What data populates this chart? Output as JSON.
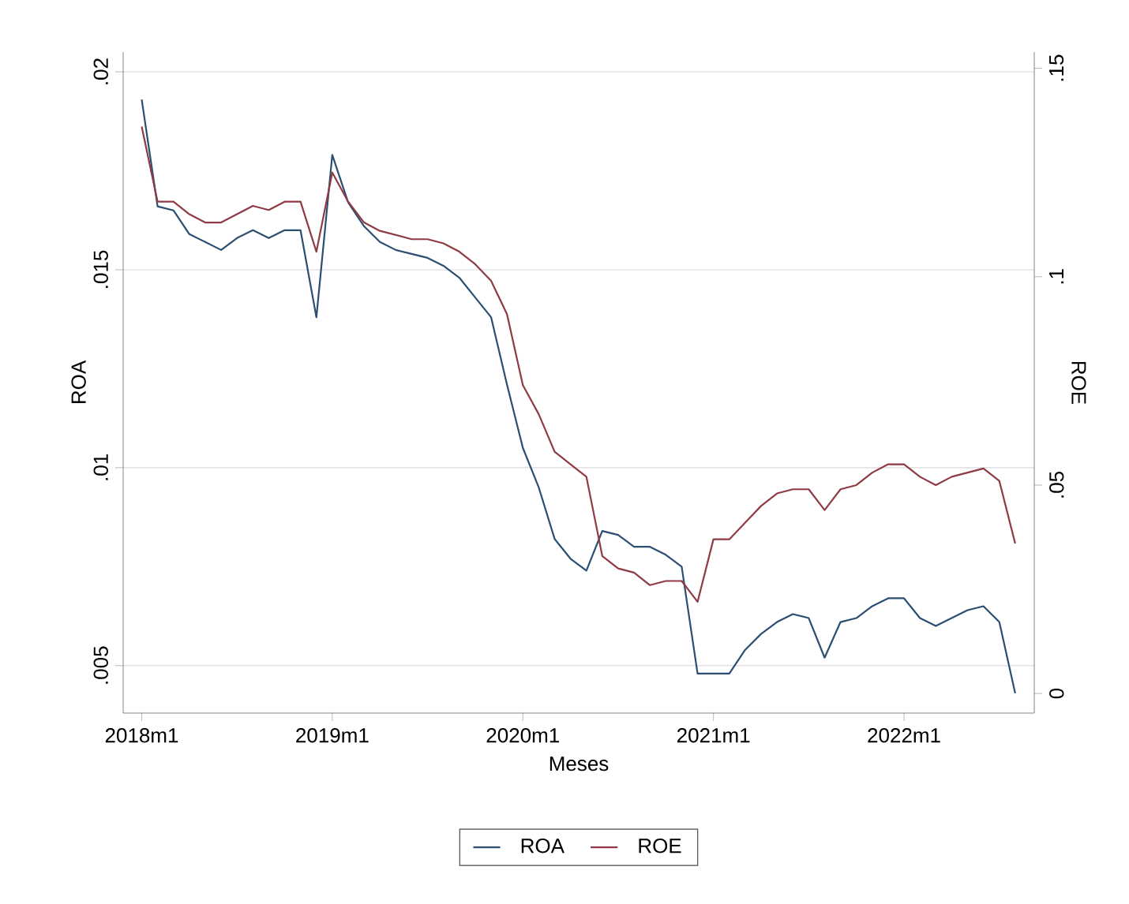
{
  "chart_data": {
    "type": "line",
    "xlabel": "Meses",
    "ylabel": "ROA",
    "y2label": "ROE",
    "x": [
      "2018-01",
      "2018-02",
      "2018-03",
      "2018-04",
      "2018-05",
      "2018-06",
      "2018-07",
      "2018-08",
      "2018-09",
      "2018-10",
      "2018-11",
      "2018-12",
      "2019-01",
      "2019-02",
      "2019-03",
      "2019-04",
      "2019-05",
      "2019-06",
      "2019-07",
      "2019-08",
      "2019-09",
      "2019-10",
      "2019-11",
      "2019-12",
      "2020-01",
      "2020-02",
      "2020-03",
      "2020-04",
      "2020-05",
      "2020-06",
      "2020-07",
      "2020-08",
      "2020-09",
      "2020-10",
      "2020-11",
      "2020-12",
      "2021-01",
      "2021-02",
      "2021-03",
      "2021-04",
      "2021-05",
      "2021-06",
      "2021-07",
      "2021-08",
      "2021-09",
      "2021-10",
      "2021-11",
      "2021-12",
      "2022-01",
      "2022-02",
      "2022-03",
      "2022-04",
      "2022-05",
      "2022-06",
      "2022-07",
      "2022-08"
    ],
    "series": [
      {
        "name": "ROA",
        "color": "#2b4f72",
        "values": [
          0.0193,
          0.0166,
          0.0165,
          0.0159,
          0.0157,
          0.0155,
          0.0158,
          0.016,
          0.0158,
          0.016,
          0.016,
          0.0138,
          0.0179,
          0.0167,
          0.0161,
          0.0157,
          0.0155,
          0.0154,
          0.0153,
          0.0151,
          0.0148,
          0.0143,
          0.0138,
          0.0121,
          0.0105,
          0.0095,
          0.0082,
          0.0077,
          0.0074,
          0.0084,
          0.0083,
          0.008,
          0.008,
          0.0078,
          0.0075,
          0.0048,
          0.0048,
          0.0048,
          0.0054,
          0.0058,
          0.0061,
          0.0063,
          0.0062,
          0.0052,
          0.0061,
          0.0062,
          0.0065,
          0.0067,
          0.0067,
          0.0062,
          0.006,
          0.0062,
          0.0064,
          0.0065,
          0.0061,
          0.0043
        ]
      },
      {
        "name": "ROE",
        "color": "#8f3a45",
        "axis": "y2",
        "values": [
          0.136,
          0.118,
          0.118,
          0.115,
          0.113,
          0.113,
          0.115,
          0.117,
          0.116,
          0.118,
          0.118,
          0.106,
          0.125,
          0.118,
          0.113,
          0.111,
          0.11,
          0.109,
          0.109,
          0.108,
          0.106,
          0.103,
          0.099,
          0.091,
          0.074,
          0.067,
          0.058,
          0.055,
          0.052,
          0.033,
          0.03,
          0.029,
          0.026,
          0.027,
          0.027,
          0.022,
          0.037,
          0.037,
          0.041,
          0.045,
          0.048,
          0.049,
          0.049,
          0.044,
          0.049,
          0.05,
          0.053,
          0.055,
          0.055,
          0.052,
          0.05,
          0.052,
          0.053,
          0.054,
          0.051,
          0.036
        ]
      }
    ],
    "xlim": [
      "2017-11-26",
      "2022-09-07"
    ],
    "xticks": [
      {
        "value": "2018-01",
        "label": "2018m1"
      },
      {
        "value": "2019-01",
        "label": "2019m1"
      },
      {
        "value": "2020-01",
        "label": "2020m1"
      },
      {
        "value": "2021-01",
        "label": "2021m1"
      },
      {
        "value": "2022-01",
        "label": "2022m1"
      }
    ],
    "ylim": [
      0.0038,
      0.0205
    ],
    "yticks": [
      {
        "value": 0.005,
        "label": ".005"
      },
      {
        "value": 0.01,
        "label": ".01"
      },
      {
        "value": 0.015,
        "label": ".015"
      },
      {
        "value": 0.02,
        "label": ".02"
      }
    ],
    "y2lim": [
      -0.0047,
      0.1539
    ],
    "y2ticks": [
      0,
      {
        "value": 0.05,
        "label": ".05"
      },
      {
        "value": 0.1,
        "label": ".1"
      },
      {
        "value": 0.15,
        "label": ".15"
      }
    ],
    "grid": "y",
    "legend": "bottom"
  }
}
